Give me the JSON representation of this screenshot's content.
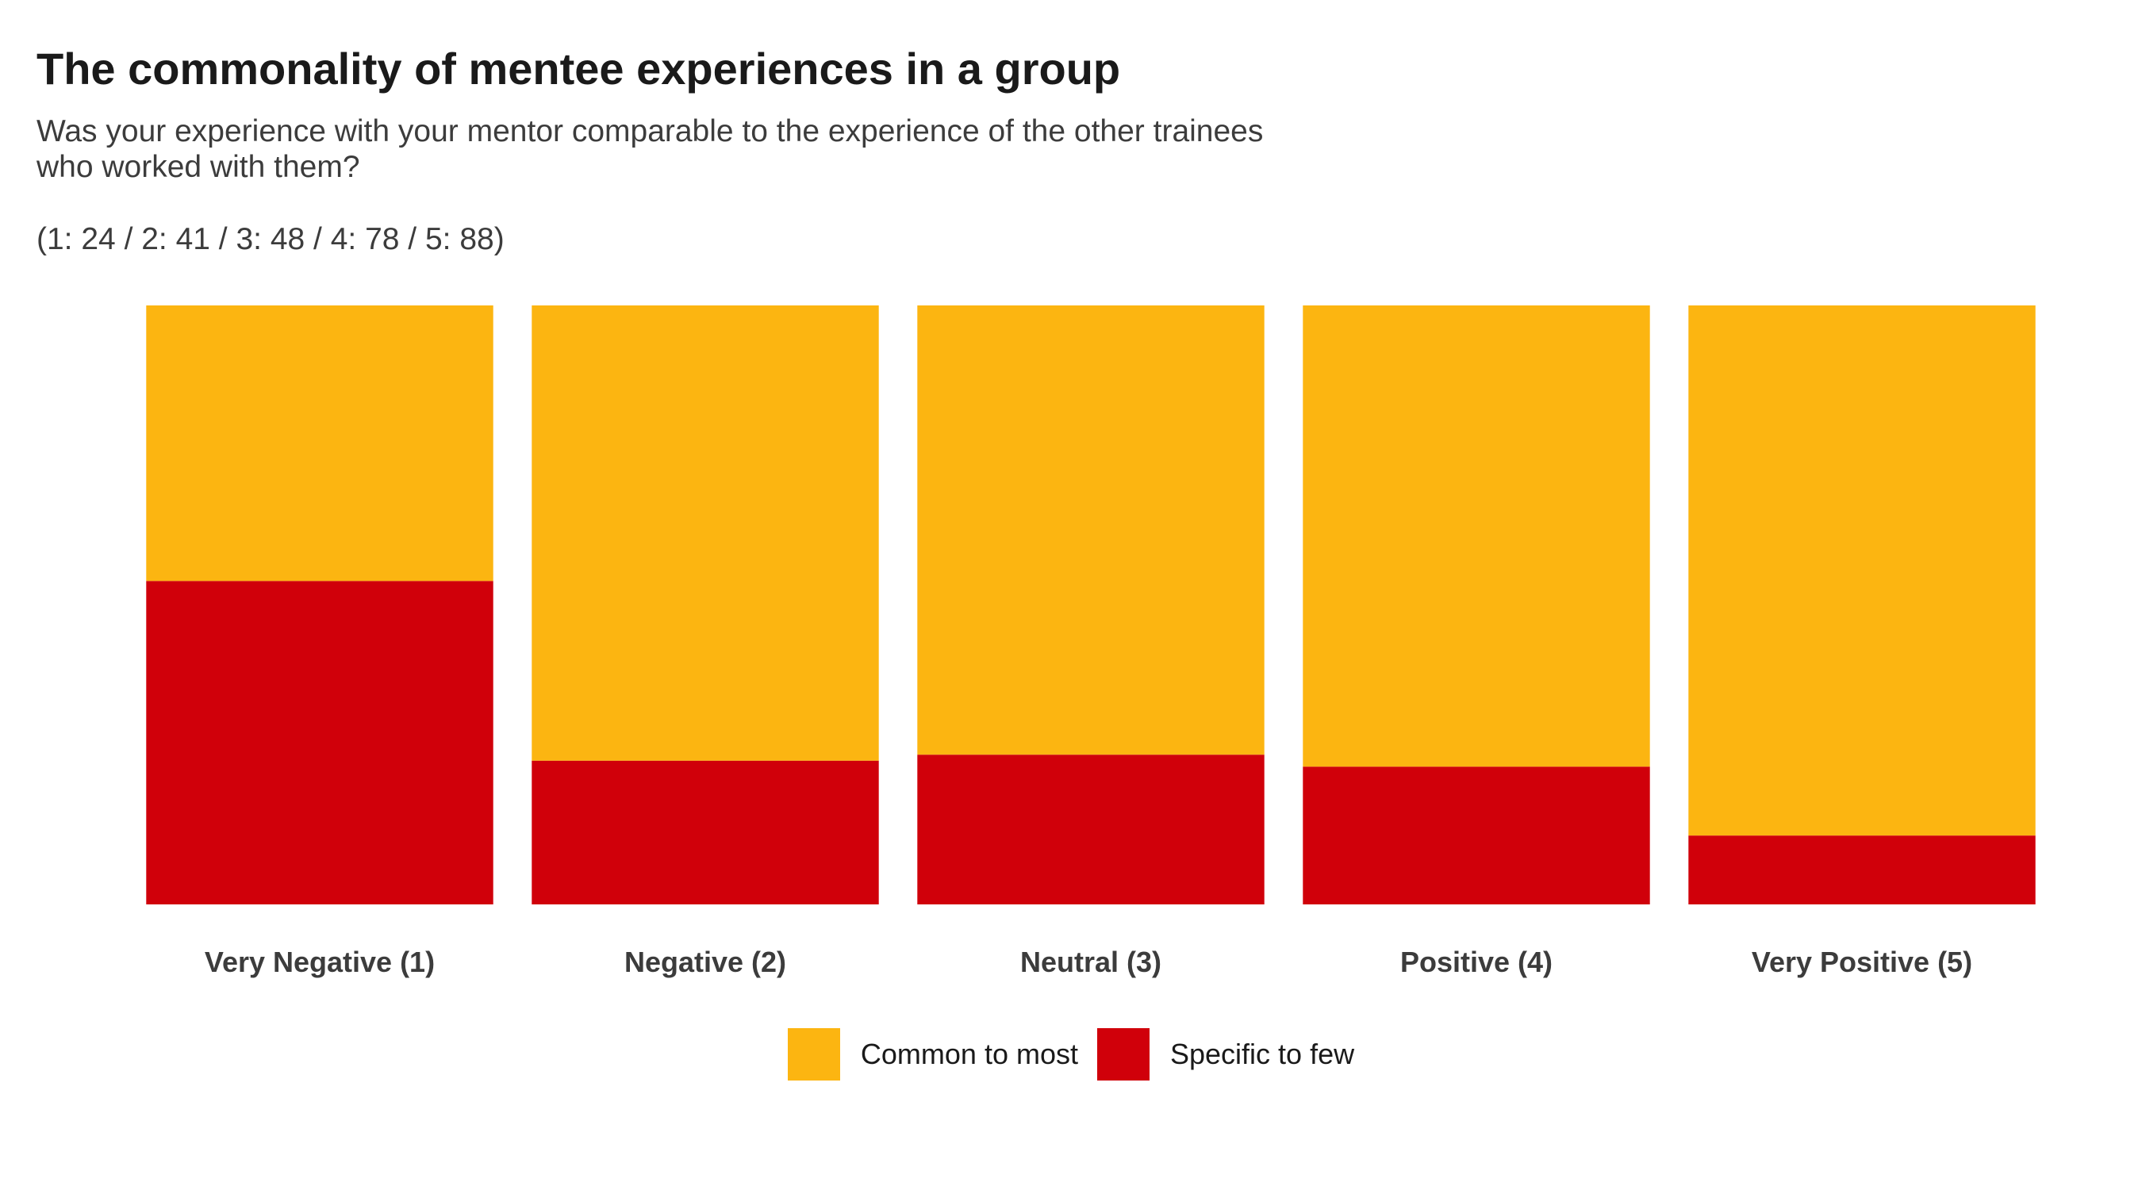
{
  "chart_data": {
    "type": "bar",
    "stacked": true,
    "normalized": true,
    "title": "The commonality of mentee experiences in a group",
    "subtitle": "Was your experience with your mentor comparable to the experience of the other trainees\nwho worked with them?",
    "counts_note": "(1: 24 / 2: 41 / 3: 48 / 4: 78 / 5: 88)",
    "categories": [
      "Very Negative (1)",
      "Negative (2)",
      "Neutral (3)",
      "Positive (4)",
      "Very Positive (5)"
    ],
    "series": [
      {
        "name": "Specific to few",
        "color": "#D0000A",
        "values": [
          0.54,
          0.24,
          0.25,
          0.23,
          0.115
        ]
      },
      {
        "name": "Common to most",
        "color": "#FCB511",
        "values": [
          0.46,
          0.76,
          0.75,
          0.77,
          0.885
        ]
      }
    ],
    "ylim": [
      0,
      1
    ],
    "xlabel": "",
    "ylabel": "",
    "grid": false,
    "legend_position": "bottom"
  },
  "legend": {
    "items": [
      {
        "label": "Common to most",
        "color": "#FCB511"
      },
      {
        "label": "Specific to few",
        "color": "#D0000A"
      }
    ]
  }
}
